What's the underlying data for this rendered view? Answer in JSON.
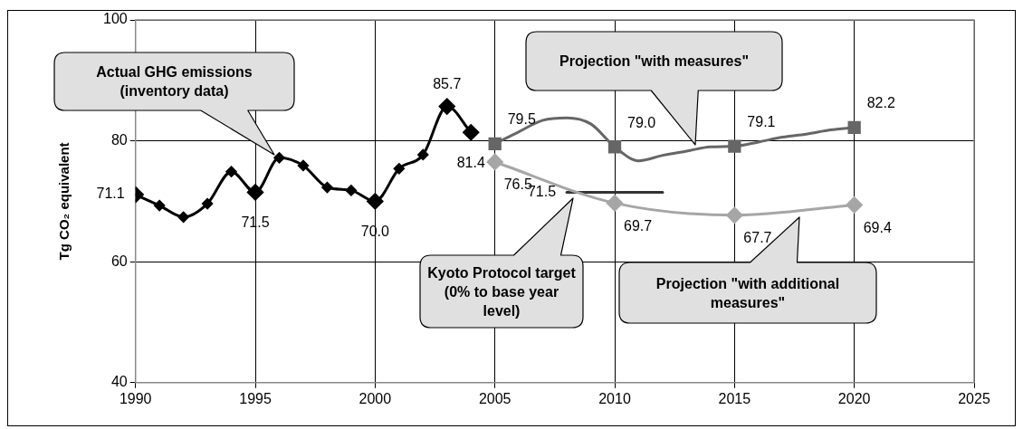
{
  "chart_data": {
    "type": "line",
    "ylabel": "Tg CO₂ equivalent",
    "xlim": [
      1990,
      2025
    ],
    "xticks": [
      1990,
      1995,
      2000,
      2005,
      2010,
      2015,
      2020,
      2025
    ],
    "ylim": [
      40,
      100
    ],
    "yticks": [
      40,
      60,
      80,
      100
    ],
    "grid": true,
    "legend": false,
    "series": [
      {
        "type": "line",
        "color": "#000000",
        "marker": "diamond",
        "x": [
          1990,
          1991,
          1992,
          1993,
          1994,
          1995,
          1996,
          1997,
          1998,
          1999,
          2000,
          2001,
          2002,
          2003,
          2004
        ],
        "values": [
          71.1,
          69.3,
          67.4,
          69.6,
          74.9,
          71.5,
          77.2,
          75.9,
          72.3,
          71.8,
          70.0,
          75.4,
          77.7,
          85.7,
          81.4
        ],
        "value_labels": [
          "71.1",
          null,
          null,
          null,
          null,
          "71.5",
          null,
          null,
          null,
          null,
          "70.0",
          null,
          null,
          "85.7",
          "81.4"
        ]
      },
      {
        "type": "line",
        "color": "#666666",
        "marker": "none",
        "x": [
          2005,
          2006,
          2007,
          2008,
          2009,
          2010,
          2011,
          2012,
          2013,
          2014,
          2015,
          2016,
          2017,
          2018,
          2019,
          2020
        ],
        "values": [
          79.5,
          81.5,
          83.4,
          83.8,
          82.8,
          79.0,
          76.7,
          77.6,
          78.3,
          79.0,
          79.1,
          79.8,
          80.6,
          81.1,
          81.8,
          82.2
        ]
      },
      {
        "type": "scatter",
        "color": "#666666",
        "marker": "square",
        "x": [
          2005,
          2010,
          2015,
          2020
        ],
        "values": [
          79.5,
          79.0,
          79.1,
          82.2
        ],
        "value_labels": [
          "79.5",
          "79.0",
          "79.1",
          "82.2"
        ]
      },
      {
        "type": "line",
        "color": "#a6a6a6",
        "marker": "diamond",
        "x": [
          2005,
          2010,
          2015,
          2020
        ],
        "values": [
          76.5,
          69.7,
          67.7,
          69.4
        ],
        "value_labels": [
          "76.5",
          "69.7",
          "67.7",
          "69.4"
        ]
      },
      {
        "type": "line",
        "color": "#333333",
        "marker": "none",
        "x": [
          2008,
          2012
        ],
        "values": [
          71.5,
          71.5
        ],
        "value_labels": [
          "71.5",
          null
        ]
      }
    ],
    "annotations": [
      "Actual GHG emissions (inventory data)",
      "Projection \"with measures\"",
      "Kyoto Protocol target (0% to base year level)",
      "Projection \"with additional measures\""
    ]
  }
}
